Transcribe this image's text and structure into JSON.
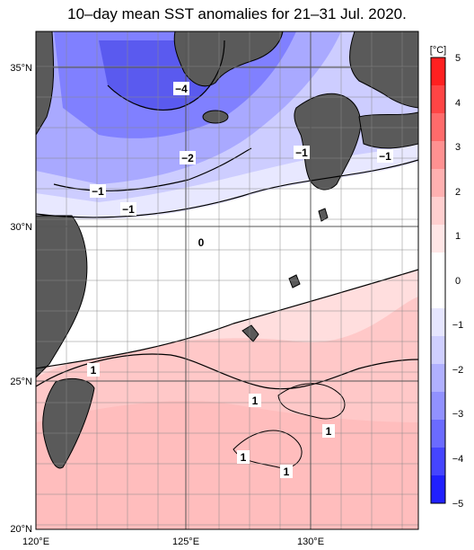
{
  "title": "10–day mean SST anomalies for 21–31 Jul. 2020.",
  "colorbar": {
    "unit": "[°C]",
    "labels": [
      "5",
      "4",
      "3",
      "2",
      "1",
      "0",
      "−1",
      "−2",
      "−3",
      "−4",
      "−5"
    ],
    "colors": [
      "#ff2020",
      "#ff4545",
      "#ff6b6b",
      "#ff9191",
      "#ffb0b0",
      "#ffcfcf",
      "#ffe6e6",
      "#ffffff",
      "#ffffff",
      "#e6e6ff",
      "#cfcfff",
      "#b0b0ff",
      "#9191ff",
      "#6b6bff",
      "#4545ff",
      "#2020ff"
    ]
  },
  "axes": {
    "lon_labels": [
      "120°E",
      "125°E",
      "130°E"
    ],
    "lat_labels": [
      "35°N",
      "30°N",
      "25°N",
      "20°N"
    ]
  },
  "contour_labels": [
    "−4",
    "−2",
    "−1",
    "−1",
    "−1",
    "−1",
    "0",
    "1",
    "1",
    "1",
    "1",
    "1"
  ],
  "colors": {
    "land": "#5a5a5a",
    "grid": "#888888",
    "coast": "#000000"
  }
}
